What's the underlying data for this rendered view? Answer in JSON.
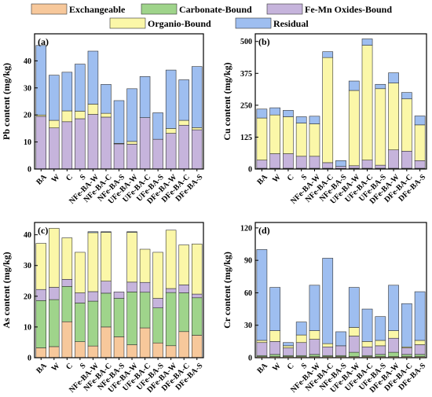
{
  "legend": [
    {
      "name": "Exchangeable",
      "color": "#f7c89b"
    },
    {
      "name": "Carbonate-Bound",
      "color": "#9fd48b"
    },
    {
      "name": "Fe-Mn Oxides-Bound",
      "color": "#c6b4dc"
    },
    {
      "name": "Organio-Bound",
      "color": "#fbf7a8"
    },
    {
      "name": "Residual",
      "color": "#9ebef0"
    }
  ],
  "chart_data": [
    {
      "type": "bar",
      "stacked": true,
      "panel": "(a)",
      "ylabel": "Pb content (mg/kg)",
      "ylim": [
        0,
        50
      ],
      "yticks": [
        0,
        10,
        20,
        30,
        40
      ],
      "categories": [
        "BA",
        "W",
        "C",
        "S",
        "NFe-BA-W",
        "NFe-BA-C",
        "NFe-BA-S",
        "UFe-BA-W",
        "UFe-BA-C",
        "UFe-BA-S",
        "DFe-BA-W",
        "DFe-BA-C",
        "DFe-BA-S"
      ],
      "series": [
        {
          "name": "Exchangeable",
          "values": [
            0,
            0,
            0,
            0,
            0,
            0,
            0,
            0,
            0,
            0,
            0,
            0,
            0
          ]
        },
        {
          "name": "Carbonate-Bound",
          "values": [
            0,
            0,
            0,
            0,
            0,
            0,
            0,
            0,
            0,
            0,
            0,
            0,
            0
          ]
        },
        {
          "name": "Fe-Mn Oxides-Bound",
          "values": [
            19.5,
            15.2,
            17.5,
            18.6,
            20.2,
            19.2,
            9.3,
            9.2,
            19.0,
            11.0,
            13.2,
            16.2,
            14.5
          ]
        },
        {
          "name": "Organio-Bound",
          "values": [
            0.5,
            2.8,
            4.0,
            2.8,
            3.8,
            1.4,
            0.2,
            1.0,
            0.0,
            0.0,
            1.8,
            1.8,
            0.8
          ]
        },
        {
          "name": "Residual",
          "values": [
            25.7,
            16.7,
            14.3,
            17.4,
            19.6,
            10.7,
            15.8,
            19.5,
            15.2,
            9.8,
            21.6,
            15.0,
            22.6
          ]
        }
      ]
    },
    {
      "type": "bar",
      "stacked": true,
      "panel": "(b)",
      "ylabel": "Cu content (mg/kg)",
      "ylim": [
        0,
        530
      ],
      "yticks": [
        0,
        125,
        250,
        375,
        500
      ],
      "categories": [
        "BA",
        "W",
        "C",
        "S",
        "NFe-BA-W",
        "NFe-BA-C",
        "NFe-BA-S",
        "UFe-BA-W",
        "UFe-BA-C",
        "UFe-BA-S",
        "DFe-BA-W",
        "DFe-BA-C",
        "DFe-BA-S"
      ],
      "series": [
        {
          "name": "Exchangeable",
          "values": [
            0,
            0,
            0,
            0,
            0,
            0,
            0,
            0,
            0,
            0,
            0,
            0,
            0
          ]
        },
        {
          "name": "Carbonate-Bound",
          "values": [
            3,
            3,
            3,
            3,
            3,
            3,
            2,
            3,
            3,
            3,
            3,
            3,
            3
          ]
        },
        {
          "name": "Fe-Mn Oxides-Bound",
          "values": [
            32,
            57,
            57,
            47,
            47,
            22,
            8,
            10,
            32,
            12,
            72,
            67,
            30
          ]
        },
        {
          "name": "Organio-Bound",
          "values": [
            165,
            152,
            145,
            130,
            127,
            412,
            0,
            295,
            450,
            300,
            262,
            205,
            140
          ]
        },
        {
          "name": "Residual",
          "values": [
            35,
            28,
            25,
            25,
            30,
            23,
            23,
            37,
            25,
            17,
            40,
            25,
            35
          ]
        }
      ]
    },
    {
      "type": "bar",
      "stacked": true,
      "panel": "(c)",
      "ylabel": "As content (mg/kg)",
      "ylim": [
        0,
        44
      ],
      "yticks": [
        0,
        10,
        20,
        30,
        40
      ],
      "categories": [
        "BA",
        "W",
        "C",
        "S",
        "NFe-BA-W",
        "NFe-BA-C",
        "NFe-BA-S",
        "UFe-BA-W",
        "UFe-BA-C",
        "UFe-BA-S",
        "DFe-BA-W",
        "DFe-BA-C",
        "DFe-BA-S"
      ],
      "series": [
        {
          "name": "Exchangeable",
          "values": [
            3.2,
            3.6,
            11.7,
            5.2,
            3.8,
            10.0,
            6.8,
            4.2,
            9.7,
            4.8,
            3.9,
            8.5,
            7.3
          ]
        },
        {
          "name": "Carbonate-Bound",
          "values": [
            15.4,
            15.3,
            11.5,
            12.6,
            14.6,
            11.0,
            12.5,
            17.2,
            11.6,
            11.4,
            17.3,
            12.6,
            12.2
          ]
        },
        {
          "name": "Fe-Mn Oxides-Bound",
          "values": [
            3.6,
            4.0,
            2.3,
            3.3,
            3.1,
            3.9,
            2.1,
            3.2,
            3.2,
            3.1,
            1.3,
            2.6,
            1.2
          ]
        },
        {
          "name": "Organio-Bound",
          "values": [
            15.0,
            19.2,
            13.5,
            13.2,
            19.2,
            15.9,
            0,
            16.2,
            10.8,
            15.0,
            19.0,
            13.0,
            16.3
          ]
        },
        {
          "name": "Residual",
          "values": [
            0,
            0,
            0,
            0,
            0.3,
            0.2,
            0,
            0.2,
            0,
            0,
            0,
            0,
            0
          ]
        }
      ]
    },
    {
      "type": "bar",
      "stacked": true,
      "panel": "(d)",
      "ylabel": "Cr content (mg/kg)",
      "ylim": [
        0,
        125
      ],
      "yticks": [
        0,
        30,
        60,
        90,
        120
      ],
      "categories": [
        "BA",
        "W",
        "C",
        "S",
        "NFe-BA-W",
        "NFe-BA-C",
        "NFe-BA-S",
        "UFe-BA-W",
        "UFe-BA-C",
        "UFe-BA-S",
        "DFe-BA-W",
        "DFe-BA-C",
        "DFe-BA-S"
      ],
      "series": [
        {
          "name": "Exchangeable",
          "values": [
            1,
            1,
            1,
            1,
            1,
            1,
            1,
            1,
            1,
            1,
            1,
            1,
            1
          ]
        },
        {
          "name": "Carbonate-Bound",
          "values": [
            1,
            2,
            1,
            1,
            2,
            1,
            1,
            4,
            1,
            2,
            4,
            2,
            2
          ]
        },
        {
          "name": "Fe-Mn Oxides-Bound",
          "values": [
            12,
            12,
            7,
            12,
            14,
            8,
            9,
            15,
            8,
            8,
            13,
            6,
            9
          ]
        },
        {
          "name": "Organio-Bound",
          "values": [
            2,
            10,
            2,
            7,
            8,
            3,
            0,
            8,
            5,
            5,
            7,
            1,
            4
          ]
        },
        {
          "name": "Residual",
          "values": [
            84,
            40,
            3,
            12,
            42,
            79,
            13,
            37,
            30,
            22,
            42,
            40,
            45
          ]
        }
      ]
    }
  ]
}
